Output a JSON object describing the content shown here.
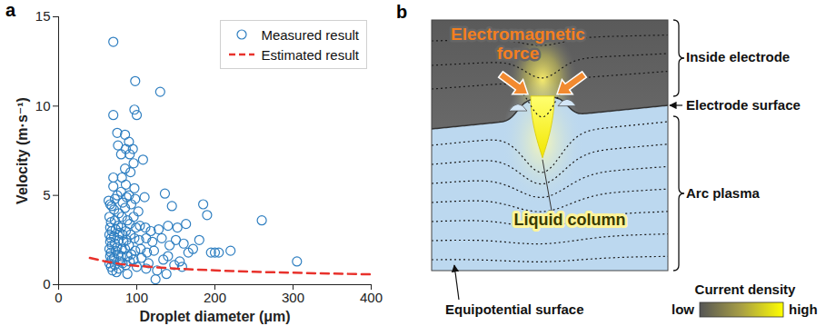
{
  "chart_data": {
    "type": "scatter",
    "panel_label": "a",
    "x_label": "Droplet diameter (μm)",
    "y_label": "Velocity (m·s⁻¹)",
    "xlim": [
      0,
      400
    ],
    "xticks": [
      0,
      100,
      200,
      300,
      400
    ],
    "ylim": [
      0,
      15
    ],
    "yticks": [
      0,
      5,
      10,
      15
    ],
    "grid": false,
    "legend": "top-right",
    "series": [
      {
        "name": "Measured result",
        "type": "scatter",
        "color": "#2f7fc1",
        "marker": "open-circle",
        "x": [
          64,
          66,
          68,
          65,
          67,
          66,
          68,
          65,
          67,
          66,
          68,
          65,
          67,
          66,
          68,
          65,
          67,
          69,
          70,
          70,
          70,
          70,
          72,
          71,
          72,
          73,
          71,
          72,
          73,
          71,
          72,
          74,
          75,
          76,
          75,
          77,
          76,
          78,
          77,
          75,
          76,
          78,
          77,
          80,
          81,
          80,
          82,
          81,
          80,
          82,
          83,
          81,
          80,
          82,
          85,
          86,
          85,
          86,
          87,
          85,
          88,
          86,
          87,
          85,
          88,
          86,
          90,
          91,
          92,
          90,
          93,
          91,
          92,
          90,
          93,
          91,
          95,
          97,
          98,
          100,
          96,
          97,
          98,
          96,
          99,
          97,
          98,
          96,
          100,
          102,
          104,
          103,
          105,
          106,
          108,
          110,
          111,
          112,
          113,
          115,
          118,
          120,
          122,
          124,
          126,
          128,
          130,
          132,
          134,
          136,
          138,
          140,
          142,
          145,
          148,
          150,
          152,
          155,
          158,
          160,
          163,
          166,
          172,
          180,
          185,
          190,
          195,
          200,
          205,
          220,
          260,
          305,
          140,
          112,
          88
        ],
        "values": [
          4.7,
          4.5,
          4.4,
          3.8,
          3.5,
          3.2,
          3.0,
          2.8,
          2.6,
          2.4,
          2.2,
          2.0,
          1.8,
          1.6,
          1.4,
          1.2,
          1.0,
          0.8,
          13.6,
          9.5,
          6.0,
          5.5,
          4.8,
          4.2,
          3.6,
          3.1,
          2.7,
          2.3,
          1.9,
          1.5,
          1.1,
          0.7,
          8.5,
          7.8,
          5.0,
          4.0,
          3.3,
          2.9,
          2.5,
          2.1,
          1.7,
          1.3,
          0.9,
          7.3,
          6.0,
          5.2,
          4.6,
          3.8,
          3.2,
          2.8,
          2.4,
          2.0,
          1.6,
          1.2,
          8.4,
          7.6,
          6.5,
          5.6,
          4.9,
          4.3,
          3.6,
          3.0,
          2.5,
          2.0,
          1.6,
          1.1,
          8.0,
          7.3,
          6.3,
          5.0,
          4.5,
          3.4,
          2.8,
          2.2,
          1.7,
          1.3,
          7.6,
          9.8,
          11.4,
          9.5,
          6.8,
          5.4,
          4.8,
          3.8,
          3.2,
          2.6,
          1.9,
          1.4,
          1.0,
          4.1,
          3.3,
          2.5,
          2.0,
          1.5,
          7.0,
          4.9,
          3.2,
          2.6,
          1.8,
          1.2,
          3.0,
          2.4,
          1.9,
          0.3,
          0.8,
          3.1,
          10.8,
          2.6,
          1.4,
          5.1,
          0.6,
          3.3,
          2.2,
          4.4,
          1.1,
          2.5,
          3.2,
          1.3,
          1.0,
          2.3,
          3.4,
          1.8,
          2.0,
          2.5,
          4.5,
          3.9,
          1.8,
          1.8,
          1.8,
          1.9,
          3.6,
          1.3,
          1.6,
          0.9,
          0.6
        ]
      },
      {
        "name": "Estimated result",
        "type": "line",
        "color": "#e8322c",
        "line_style": "dashed",
        "x": [
          40,
          60,
          80,
          100,
          150,
          200,
          250,
          300,
          350,
          400
        ],
        "values": [
          1.5,
          1.3,
          1.15,
          1.05,
          0.9,
          0.8,
          0.72,
          0.67,
          0.62,
          0.58
        ]
      }
    ]
  },
  "diagram": {
    "panel_label": "b",
    "annotations": {
      "force": "Electromagnetic force",
      "column": "Liquid column",
      "equipotential": "Equipotential surface"
    },
    "regions": {
      "electrode": "Inside electrode",
      "surface": "Electrode surface",
      "plasma": "Arc plasma"
    },
    "colorbar": {
      "title": "Current density",
      "low": "low",
      "high": "high"
    }
  }
}
